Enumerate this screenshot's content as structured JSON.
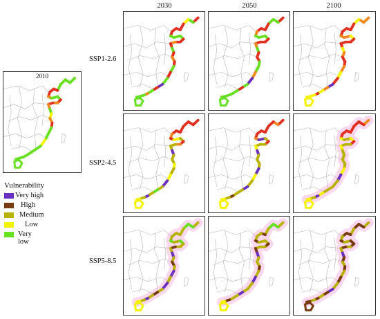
{
  "columns": [
    "2030",
    "2050",
    "2100"
  ],
  "rows": [
    "SSP1-2.6",
    "SSP2-4.5",
    "SSP5-8.5"
  ],
  "baseline": "2010",
  "legend": {
    "title": "Vulnerability",
    "items": [
      {
        "label": "Very high",
        "color": "#6a2fc0"
      },
      {
        "label": "High",
        "color": "#7a3a10"
      },
      {
        "label": "Medium",
        "color": "#b8b200"
      },
      {
        "label": "Low",
        "color": "#f4f400"
      },
      {
        "label": "Very low",
        "color": "#66e020"
      }
    ]
  },
  "colors": {
    "border_lines": "#b4b4b4",
    "red": "#e23020",
    "orange": "#f08a20",
    "halo": "#f6c8e8"
  }
}
